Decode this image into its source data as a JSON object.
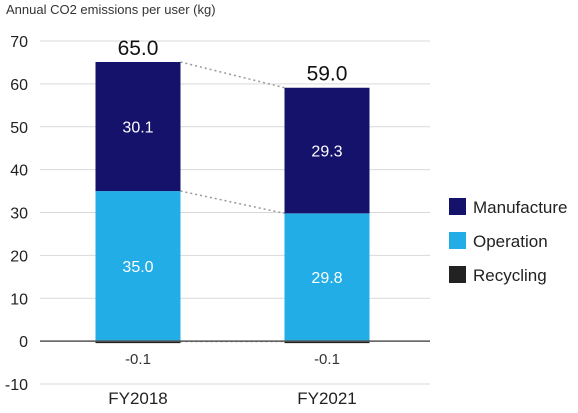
{
  "chart_data": {
    "type": "bar",
    "stacked": true,
    "title": "",
    "ylabel": "Annual CO2 emissions per user (kg)",
    "xlabel": "",
    "categories": [
      "FY2018",
      "FY2021"
    ],
    "series": [
      {
        "name": "Manufacture",
        "values": [
          30.1,
          29.3
        ],
        "color": "#15126b",
        "label_color": "#ffffff"
      },
      {
        "name": "Operation",
        "values": [
          35.0,
          29.8
        ],
        "color": "#22ade6",
        "label_color": "#ffffff"
      },
      {
        "name": "Recycling",
        "values": [
          -0.1,
          -0.1
        ],
        "color": "#222222",
        "label_color": "#333333"
      }
    ],
    "totals": [
      "65.0",
      "59.0"
    ],
    "ylim": [
      -10,
      70
    ],
    "yticks": [
      -10,
      0,
      10,
      20,
      30,
      40,
      50,
      60,
      70
    ],
    "grid": true,
    "legend_position": "right",
    "connector_lines": true
  }
}
